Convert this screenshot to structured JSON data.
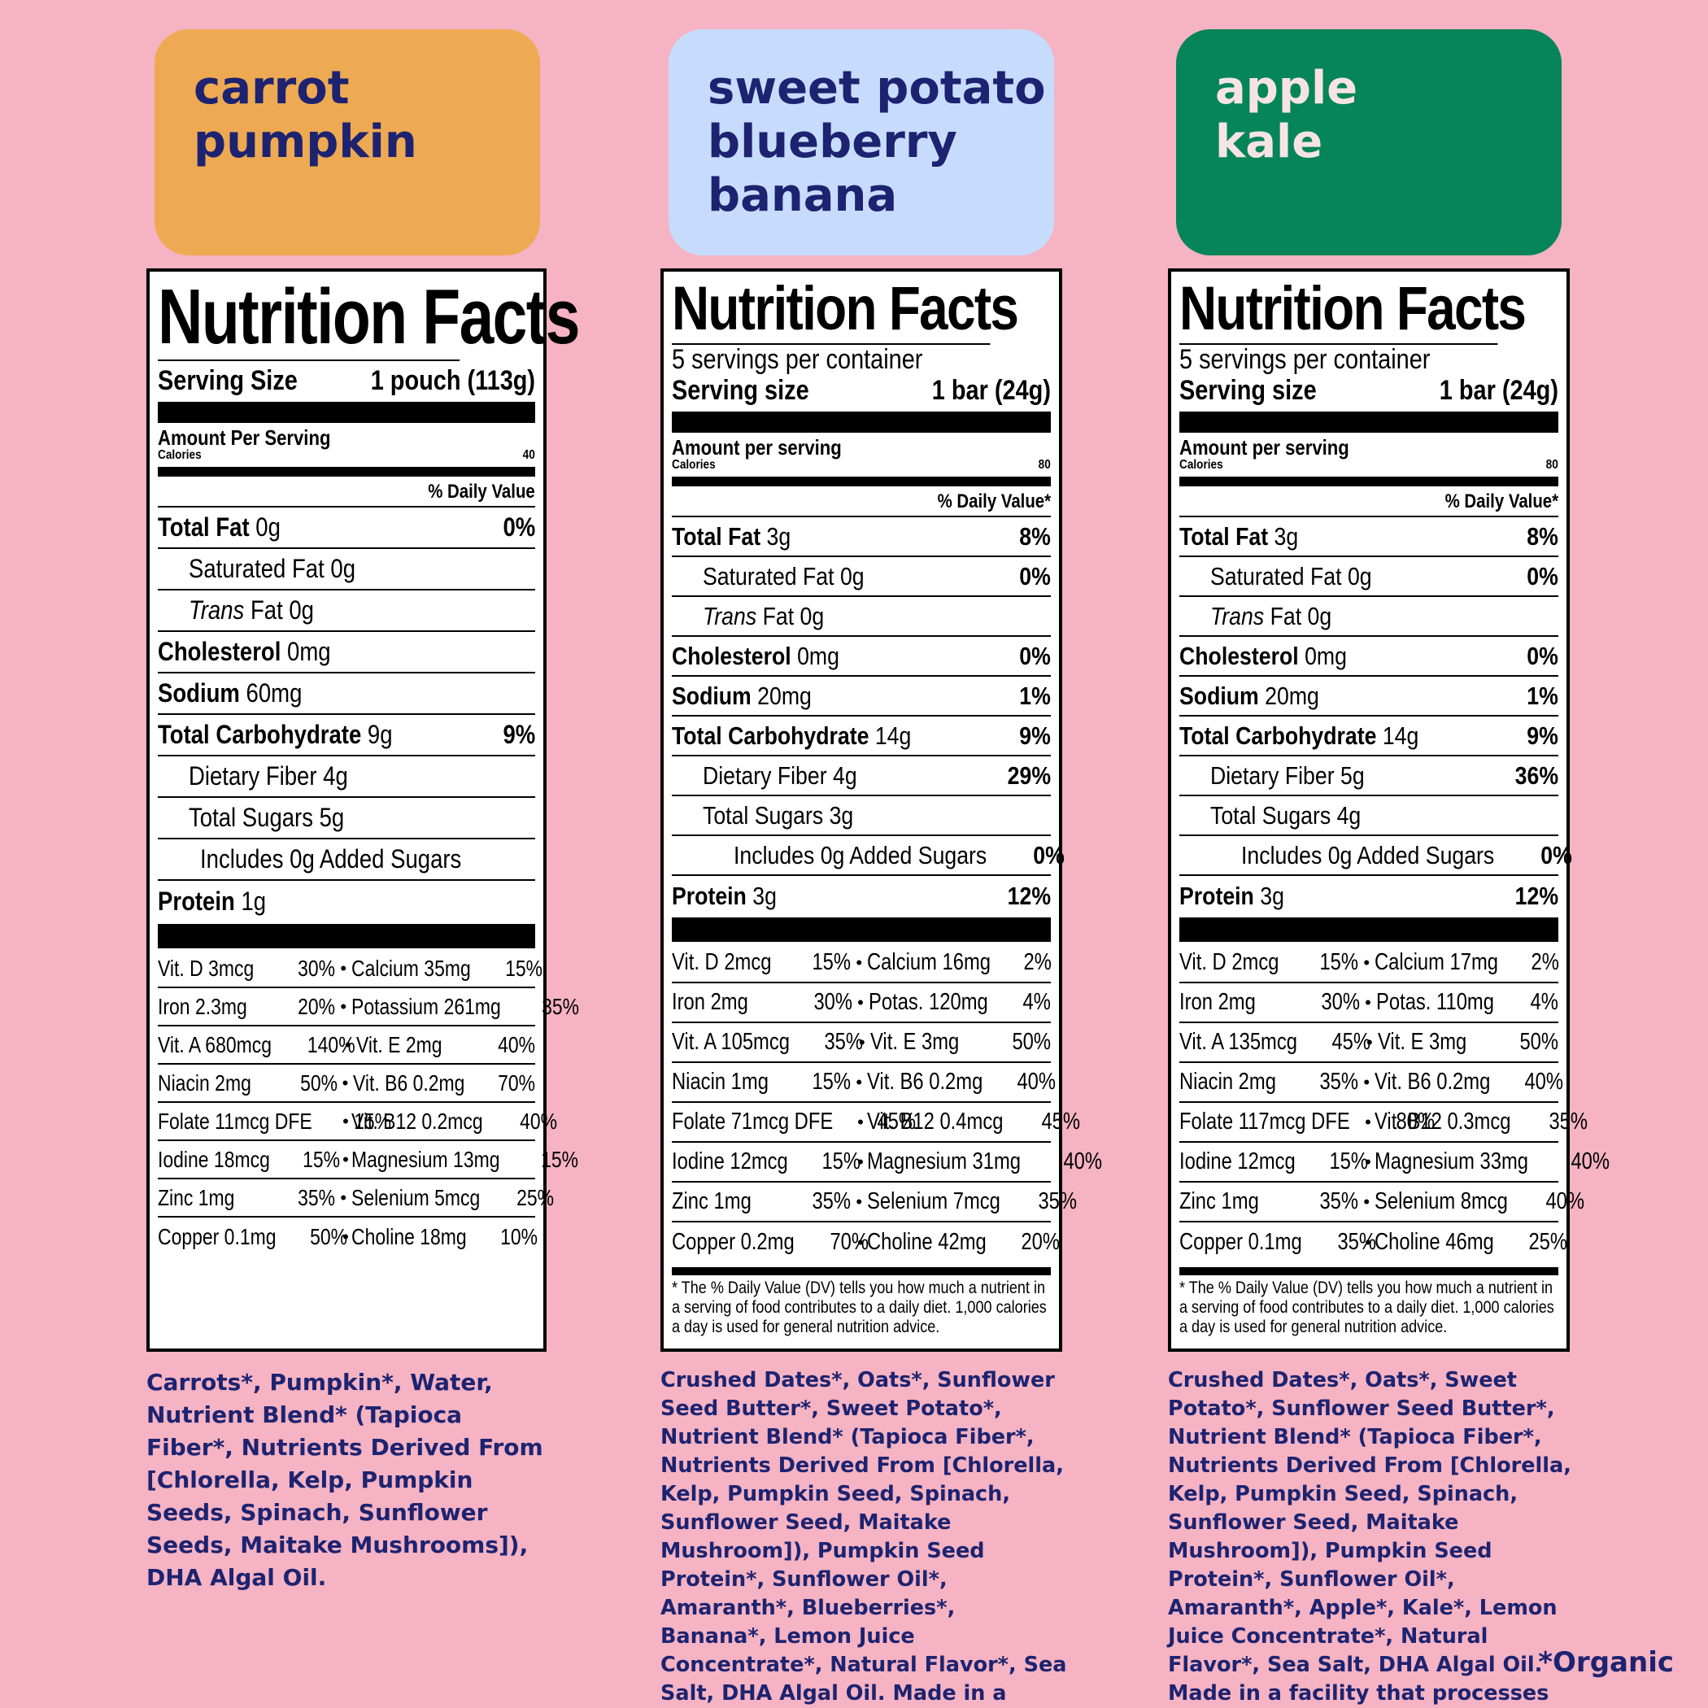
{
  "products": [
    {
      "title_lines": [
        "carrot",
        "pumpkin"
      ],
      "label": {
        "heading": "Nutrition Facts",
        "servings_per_container": "",
        "serving_label": "Serving Size",
        "serving_value": "1 pouch (113g)",
        "amount_per_serving": "Amount Per Serving",
        "calories_label": "Calories",
        "calories_value": "40",
        "daily_value_header": "% Daily Value",
        "nutrients": [
          {
            "name": "Total Fat",
            "amount": "0g",
            "dv": "0%"
          },
          {
            "name": "Saturated Fat 0g",
            "amount": "",
            "dv": ""
          },
          {
            "name": "Trans",
            "amount": "Fat 0g",
            "dv": ""
          },
          {
            "name": "Cholesterol",
            "amount": "0mg",
            "dv": ""
          },
          {
            "name": "Sodium",
            "amount": "60mg",
            "dv": ""
          },
          {
            "name": "Total Carbohydrate",
            "amount": "9g",
            "dv": "9%"
          },
          {
            "name": "Dietary Fiber 4g",
            "amount": "",
            "dv": ""
          },
          {
            "name": "Total Sugars 5g",
            "amount": "",
            "dv": ""
          },
          {
            "name": "Includes 0g Added Sugars",
            "amount": "",
            "dv": ""
          },
          {
            "name": "Protein",
            "amount": "1g",
            "dv": ""
          }
        ],
        "vitamins": [
          [
            "Vit. D 3mcg",
            "30%",
            "Calcium 35mg",
            "15%"
          ],
          [
            "Iron 2.3mg",
            "20%",
            "Potassium 261mg",
            "35%"
          ],
          [
            "Vit. A 680mcg",
            "140%",
            "Vit. E 2mg",
            "40%"
          ],
          [
            "Niacin 2mg",
            "50%",
            "Vit. B6 0.2mg",
            "70%"
          ],
          [
            "Folate 11mcg DFE",
            "15%",
            "Vit. B12 0.2mcg",
            "40%"
          ],
          [
            "Iodine 18mcg",
            "15%",
            "Magnesium 13mg",
            "15%"
          ],
          [
            "Zinc 1mg",
            "35%",
            "Selenium 5mcg",
            "25%"
          ],
          [
            "Copper 0.1mg",
            "50%",
            "Choline 18mg",
            "10%"
          ]
        ],
        "footnote": ""
      },
      "ingredients": "Carrots*, Pumpkin*, Water, Nutrient Blend* (Tapioca Fiber*, Nutrients Derived From [Chlorella, Kelp, Pumpkin Seeds, Spinach, Sunflower Seeds, Maitake Mushrooms]), DHA Algal Oil.",
      "allergen": ""
    },
    {
      "title_lines": [
        "sweet potato",
        "blueberry",
        "banana"
      ],
      "label": {
        "heading": "Nutrition Facts",
        "servings_per_container": "5 servings per container",
        "serving_label": "Serving size",
        "serving_value": "1 bar (24g)",
        "amount_per_serving": "Amount per serving",
        "calories_label": "Calories",
        "calories_value": "80",
        "daily_value_header": "% Daily Value*",
        "nutrients": [
          {
            "name": "Total Fat",
            "amount": "3g",
            "dv": "8%"
          },
          {
            "name": "Saturated Fat 0g",
            "amount": "",
            "dv": "0%"
          },
          {
            "name": "Trans",
            "amount": "Fat 0g",
            "dv": ""
          },
          {
            "name": "Cholesterol",
            "amount": "0mg",
            "dv": "0%"
          },
          {
            "name": "Sodium",
            "amount": "20mg",
            "dv": "1%"
          },
          {
            "name": "Total Carbohydrate",
            "amount": "14g",
            "dv": "9%"
          },
          {
            "name": "Dietary Fiber 4g",
            "amount": "",
            "dv": "29%"
          },
          {
            "name": "Total Sugars 3g",
            "amount": "",
            "dv": ""
          },
          {
            "name": "Includes 0g Added Sugars",
            "amount": "",
            "dv": "0%"
          },
          {
            "name": "Protein",
            "amount": "3g",
            "dv": "12%"
          }
        ],
        "vitamins": [
          [
            "Vit. D 2mcg",
            "15%",
            "Calcium 16mg",
            "2%"
          ],
          [
            "Iron 2mg",
            "30%",
            "Potas. 120mg",
            "4%"
          ],
          [
            "Vit. A 105mcg",
            "35%",
            "Vit. E 3mg",
            "50%"
          ],
          [
            "Niacin 1mg",
            "15%",
            "Vit. B6 0.2mg",
            "40%"
          ],
          [
            "Folate 71mcg DFE",
            "45%",
            "Vit. B12 0.4mcg",
            "45%"
          ],
          [
            "Iodine 12mcg",
            "15%",
            "Magnesium 31mg",
            "40%"
          ],
          [
            "Zinc 1mg",
            "35%",
            "Selenium 7mcg",
            "35%"
          ],
          [
            "Copper 0.2mg",
            "70%",
            "Choline 42mg",
            "20%"
          ]
        ],
        "footnote": "* The % Daily Value (DV) tells you how much a nutrient in a serving of food contributes to a daily diet. 1,000 calories a day is used for general nutrition advice."
      },
      "ingredients": "Crushed Dates*, Oats*, Sunflower Seed Butter*, Sweet Potato*, Nutrient Blend* (Tapioca Fiber*, Nutrients Derived From [Chlorella, Kelp, Pumpkin Seed, Spinach, Sunflower Seed, Maitake Mushroom]), Pumpkin Seed Protein*, Sunflower Oil*, Amaranth*, Blueberries*, Banana*, Lemon Juice Concentrate*, Natural Flavor*, Sea Salt, DHA Algal Oil.",
      "allergen": "Made in a facility that processes gluten, dairy, eggs, and soy."
    },
    {
      "title_lines": [
        "apple",
        "kale"
      ],
      "label": {
        "heading": "Nutrition Facts",
        "servings_per_container": "5 servings per container",
        "serving_label": "Serving size",
        "serving_value": "1 bar (24g)",
        "amount_per_serving": "Amount per serving",
        "calories_label": "Calories",
        "calories_value": "80",
        "daily_value_header": "% Daily Value*",
        "nutrients": [
          {
            "name": "Total Fat",
            "amount": "3g",
            "dv": "8%"
          },
          {
            "name": "Saturated Fat 0g",
            "amount": "",
            "dv": "0%"
          },
          {
            "name": "Trans",
            "amount": "Fat 0g",
            "dv": ""
          },
          {
            "name": "Cholesterol",
            "amount": "0mg",
            "dv": "0%"
          },
          {
            "name": "Sodium",
            "amount": "20mg",
            "dv": "1%"
          },
          {
            "name": "Total Carbohydrate",
            "amount": "14g",
            "dv": "9%"
          },
          {
            "name": "Dietary Fiber 5g",
            "amount": "",
            "dv": "36%"
          },
          {
            "name": "Total Sugars 4g",
            "amount": "",
            "dv": ""
          },
          {
            "name": "Includes 0g Added Sugars",
            "amount": "",
            "dv": "0%"
          },
          {
            "name": "Protein",
            "amount": "3g",
            "dv": "12%"
          }
        ],
        "vitamins": [
          [
            "Vit. D 2mcg",
            "15%",
            "Calcium 17mg",
            "2%"
          ],
          [
            "Iron 2mg",
            "30%",
            "Potas. 110mg",
            "4%"
          ],
          [
            "Vit. A 135mcg",
            "45%",
            "Vit. E 3mg",
            "50%"
          ],
          [
            "Niacin 2mg",
            "35%",
            "Vit. B6 0.2mg",
            "40%"
          ],
          [
            "Folate 117mcg DFE",
            "80%",
            "Vit. B12 0.3mcg",
            "35%"
          ],
          [
            "Iodine 12mcg",
            "15%",
            "Magnesium 33mg",
            "40%"
          ],
          [
            "Zinc 1mg",
            "35%",
            "Selenium 8mcg",
            "40%"
          ],
          [
            "Copper 0.1mg",
            "35%",
            "Choline 46mg",
            "25%"
          ]
        ],
        "footnote": "* The % Daily Value (DV) tells you how much a nutrient in a serving of food contributes to a daily diet. 1,000 calories a day is used for general nutrition advice."
      },
      "ingredients": "Crushed Dates*, Oats*, Sweet Potato*, Sunflower Seed Butter*, Nutrient Blend* (Tapioca Fiber*, Nutrients Derived From [Chlorella, Kelp, Pumpkin Seed, Spinach, Sunflower Seed, Maitake Mushroom]), Pumpkin Seed Protein*, Sunflower Oil*, Amaranth*, Apple*, Kale*, Lemon Juice Concentrate*, Natural Flavor*, Sea Salt, DHA Algal Oil.",
      "allergen": "Made in a facility that processes gluten, dairy, eggs, and soy."
    }
  ],
  "organic_note": "*Organic",
  "colors": {
    "background": "#f5b3c3",
    "carrot_pumpkin": "#eeaa52",
    "sweet_potato_blueberry_banana": "#c7dcfd",
    "apple_kale": "#06845a",
    "navy_text": "#1d2370"
  }
}
